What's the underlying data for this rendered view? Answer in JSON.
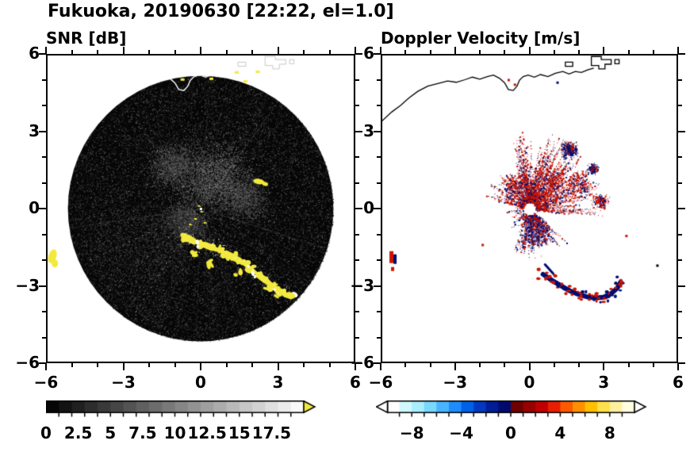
{
  "figure_title": "Fukuoka, 20190630 [22:22, el=1.0]",
  "panels": {
    "snr": {
      "title": "SNR [dB]"
    },
    "doppler": {
      "title": "Doppler Velocity [m/s]"
    }
  },
  "axes": {
    "xlim": [
      -6,
      6
    ],
    "ylim": [
      -6,
      6
    ],
    "xticks": [
      -6,
      -3,
      0,
      3,
      6
    ],
    "yticks": [
      6,
      3,
      0,
      -3,
      -6
    ],
    "xtick_labels": [
      "−6",
      "−3",
      "0",
      "3",
      "6"
    ],
    "ytick_labels": [
      "6",
      "3",
      "0",
      "−3",
      "−6"
    ],
    "minor_tick_step": 1
  },
  "colorbars": {
    "snr": {
      "labels": [
        "0",
        "2.5",
        "5",
        "7.5",
        "10",
        "12.5",
        "15",
        "17.5"
      ],
      "label_values": [
        0,
        2.5,
        5,
        7.5,
        10,
        12.5,
        15,
        17.5
      ],
      "vmin": 0,
      "vmax": 20,
      "tick_step": 1,
      "style": "grayscale",
      "overflow_color": "#f2e93c"
    },
    "doppler": {
      "labels": [
        "−8",
        "−4",
        "0",
        "4",
        "8"
      ],
      "label_values": [
        -8,
        -4,
        0,
        4,
        8
      ],
      "vmin": -10,
      "vmax": 10,
      "tick_step": 1,
      "style": "diverging",
      "under_color": "#ffffff",
      "over_color": "#ffffff",
      "segment_colors": [
        "#ffffff",
        "#d0f8ff",
        "#a8eeff",
        "#78d8ff",
        "#48b4ff",
        "#1e8cff",
        "#0060e8",
        "#0038c0",
        "#001c96",
        "#000a6e",
        "#6e0000",
        "#960000",
        "#c00000",
        "#e81e00",
        "#ff5a00",
        "#ff9000",
        "#ffc000",
        "#ffe04a",
        "#fff0a0",
        "#fffde0"
      ]
    }
  },
  "chart_data": {
    "type": "radar_ppi_pair",
    "site": "Fukuoka",
    "date": "20190630",
    "time": "22:22",
    "elevation_deg": 1.0,
    "panel_variables": [
      "SNR [dB]",
      "Doppler Velocity [m/s]"
    ],
    "axis_units": "km",
    "scan_radius_km": 5.15,
    "coastline_km": [
      [
        -6.0,
        3.35
      ],
      [
        -5.55,
        3.75
      ],
      [
        -5.2,
        4.0
      ],
      [
        -4.85,
        4.3
      ],
      [
        -4.5,
        4.55
      ],
      [
        -4.1,
        4.75
      ],
      [
        -3.7,
        4.85
      ],
      [
        -3.3,
        4.95
      ],
      [
        -2.95,
        4.9
      ],
      [
        -2.6,
        5.0
      ],
      [
        -2.3,
        5.1
      ],
      [
        -2.0,
        5.02
      ],
      [
        -1.7,
        5.12
      ],
      [
        -1.45,
        5.18
      ],
      [
        -1.2,
        5.05
      ],
      [
        -1.0,
        4.88
      ],
      [
        -0.85,
        4.62
      ],
      [
        -0.65,
        4.58
      ],
      [
        -0.5,
        4.75
      ],
      [
        -0.4,
        4.98
      ],
      [
        -0.25,
        5.12
      ],
      [
        -0.05,
        5.18
      ],
      [
        0.2,
        5.1
      ],
      [
        0.45,
        5.2
      ],
      [
        0.75,
        5.12
      ],
      [
        1.05,
        5.25
      ],
      [
        1.35,
        5.32
      ],
      [
        1.6,
        5.22
      ],
      [
        1.85,
        5.32
      ],
      [
        2.1,
        5.28
      ],
      [
        2.35,
        5.38
      ],
      [
        2.6,
        5.45
      ]
    ],
    "islands_km": [
      [
        [
          1.45,
          5.52
        ],
        [
          1.75,
          5.52
        ],
        [
          1.75,
          5.68
        ],
        [
          1.45,
          5.68
        ]
      ],
      [
        [
          2.5,
          5.55
        ],
        [
          2.8,
          5.55
        ],
        [
          2.8,
          5.42
        ],
        [
          3.05,
          5.42
        ],
        [
          3.05,
          5.6
        ],
        [
          3.3,
          5.6
        ],
        [
          3.3,
          5.78
        ],
        [
          2.9,
          5.78
        ],
        [
          2.9,
          5.9
        ],
        [
          2.5,
          5.9
        ]
      ],
      [
        [
          3.45,
          5.62
        ],
        [
          3.62,
          5.62
        ],
        [
          3.62,
          5.78
        ],
        [
          3.45,
          5.78
        ]
      ]
    ],
    "snr_echoes": {
      "echo_color": "#f2e93c",
      "arc_km": [
        [
          -0.55,
          -1.12
        ],
        [
          -0.3,
          -1.25
        ],
        [
          -0.05,
          -1.35
        ],
        [
          0.2,
          -1.42
        ],
        [
          0.45,
          -1.52
        ],
        [
          0.72,
          -1.62
        ],
        [
          1.0,
          -1.75
        ],
        [
          1.25,
          -1.88
        ],
        [
          1.5,
          -2.02
        ],
        [
          1.75,
          -2.18
        ],
        [
          2.0,
          -2.38
        ],
        [
          2.25,
          -2.58
        ],
        [
          2.5,
          -2.78
        ],
        [
          2.75,
          -2.98
        ],
        [
          3.0,
          -3.18
        ],
        [
          3.25,
          -3.32
        ],
        [
          3.5,
          -3.42
        ]
      ],
      "extra_blobs_km": [
        [
          0.35,
          -2.12
        ],
        [
          1.45,
          -2.5
        ],
        [
          2.6,
          -3.05
        ],
        [
          3.05,
          -3.35
        ],
        [
          -0.2,
          -1.75
        ]
      ],
      "center_specks_km": [
        [
          0.02,
          -0.12
        ],
        [
          -0.22,
          -0.4
        ],
        [
          -0.42,
          -0.62
        ],
        [
          0.15,
          -0.55
        ],
        [
          -0.08,
          0.1
        ]
      ],
      "coast_specks_km": [
        [
          -0.72,
          5.02
        ],
        [
          1.38,
          5.3
        ],
        [
          1.72,
          4.95
        ],
        [
          2.2,
          5.32
        ],
        [
          0.4,
          5.05
        ]
      ],
      "offshore_blob_km": [
        -5.75,
        -1.85
      ],
      "upper_right_blob_km": [
        2.25,
        1.05
      ]
    },
    "doppler_echoes": {
      "positive_color": "#cc1400",
      "negative_color": "#000d70",
      "streak_sets": [
        {
          "n": 170,
          "a0": -8,
          "a1": 105,
          "r0": 0.35,
          "r1": 3.1,
          "navy": 0.3
        },
        {
          "n": 60,
          "a0": 105,
          "a1": 168,
          "r0": 0.3,
          "r1": 1.9,
          "navy": 0.35
        },
        {
          "n": 85,
          "a0": 248,
          "a1": 322,
          "r0": 0.3,
          "r1": 2.0,
          "navy": 0.6
        },
        {
          "n": 30,
          "a0": 168,
          "a1": 248,
          "r0": 0.25,
          "r1": 1.05,
          "navy": 0.5
        }
      ],
      "blobs": [
        {
          "x": 1.6,
          "y": 2.3,
          "s": 0.28,
          "n": 330,
          "navy": 0.75
        },
        {
          "x": 2.55,
          "y": 1.55,
          "s": 0.2,
          "n": 190,
          "navy": 0.7
        },
        {
          "x": 2.85,
          "y": 0.28,
          "s": 0.28,
          "n": 230,
          "navy": 0.35
        },
        {
          "x": 0.95,
          "y": 1.15,
          "s": 0.45,
          "n": 260,
          "navy": 0.25
        },
        {
          "x": -0.55,
          "y": 0.9,
          "s": 0.4,
          "n": 210,
          "navy": 0.3
        },
        {
          "x": 0.35,
          "y": -0.95,
          "s": 0.42,
          "n": 250,
          "navy": 0.65
        },
        {
          "x": 1.95,
          "y": 1.0,
          "s": 0.5,
          "n": 220,
          "navy": 0.3
        }
      ],
      "arc_km": [
        [
          0.55,
          -2.55
        ],
        [
          0.9,
          -2.78
        ],
        [
          1.25,
          -2.98
        ],
        [
          1.6,
          -3.18
        ],
        [
          1.95,
          -3.32
        ],
        [
          2.3,
          -3.42
        ],
        [
          2.65,
          -3.47
        ],
        [
          3.0,
          -3.44
        ],
        [
          3.3,
          -3.3
        ],
        [
          3.55,
          -3.08
        ],
        [
          3.68,
          -2.85
        ]
      ],
      "offshore_blob_km": [
        -5.55,
        -1.9
      ],
      "small_dash_km": [
        0.78,
        -2.32
      ],
      "specks": [
        [
          -0.85,
          5.0,
          "#cc1400"
        ],
        [
          -0.6,
          4.82,
          "#cc1400"
        ],
        [
          1.12,
          4.9,
          "#000d70"
        ],
        [
          5.15,
          -2.2,
          "#000000"
        ],
        [
          3.9,
          -1.05,
          "#cc1400"
        ],
        [
          -1.9,
          -1.4,
          "#cc1400"
        ]
      ]
    }
  }
}
